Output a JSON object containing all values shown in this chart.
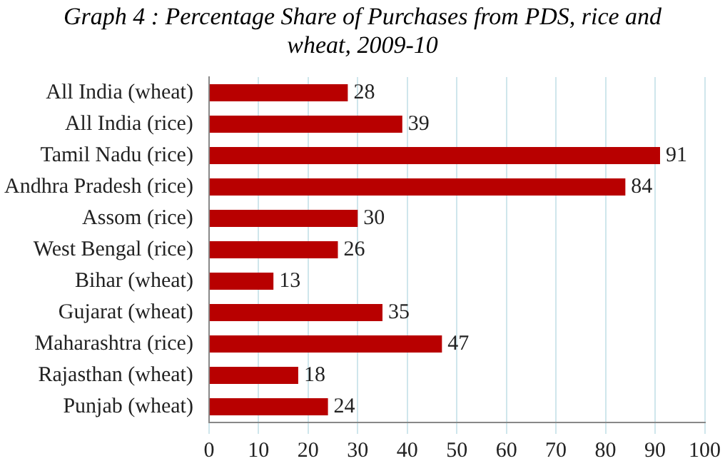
{
  "chart_data": {
    "type": "bar",
    "orientation": "horizontal",
    "title": "Graph 4 : Percentage Share of Purchases from PDS, rice and wheat, 2009-10",
    "categories": [
      "All India (wheat)",
      "All India (rice)",
      "Tamil Nadu (rice)",
      "Andhra Pradesh (rice)",
      "Assom (rice)",
      "West Bengal (rice)",
      "Bihar (wheat)",
      "Gujarat (wheat)",
      "Maharashtra (rice)",
      "Rajasthan (wheat)",
      "Punjab (wheat)"
    ],
    "values": [
      28,
      39,
      91,
      84,
      30,
      26,
      13,
      35,
      47,
      18,
      24
    ],
    "color": "#b80000",
    "xlim": [
      0,
      100
    ],
    "xticks": [
      0,
      10,
      20,
      30,
      40,
      50,
      60,
      70,
      80,
      90,
      100
    ],
    "grid": "x",
    "legend": false,
    "data_labels": true
  }
}
